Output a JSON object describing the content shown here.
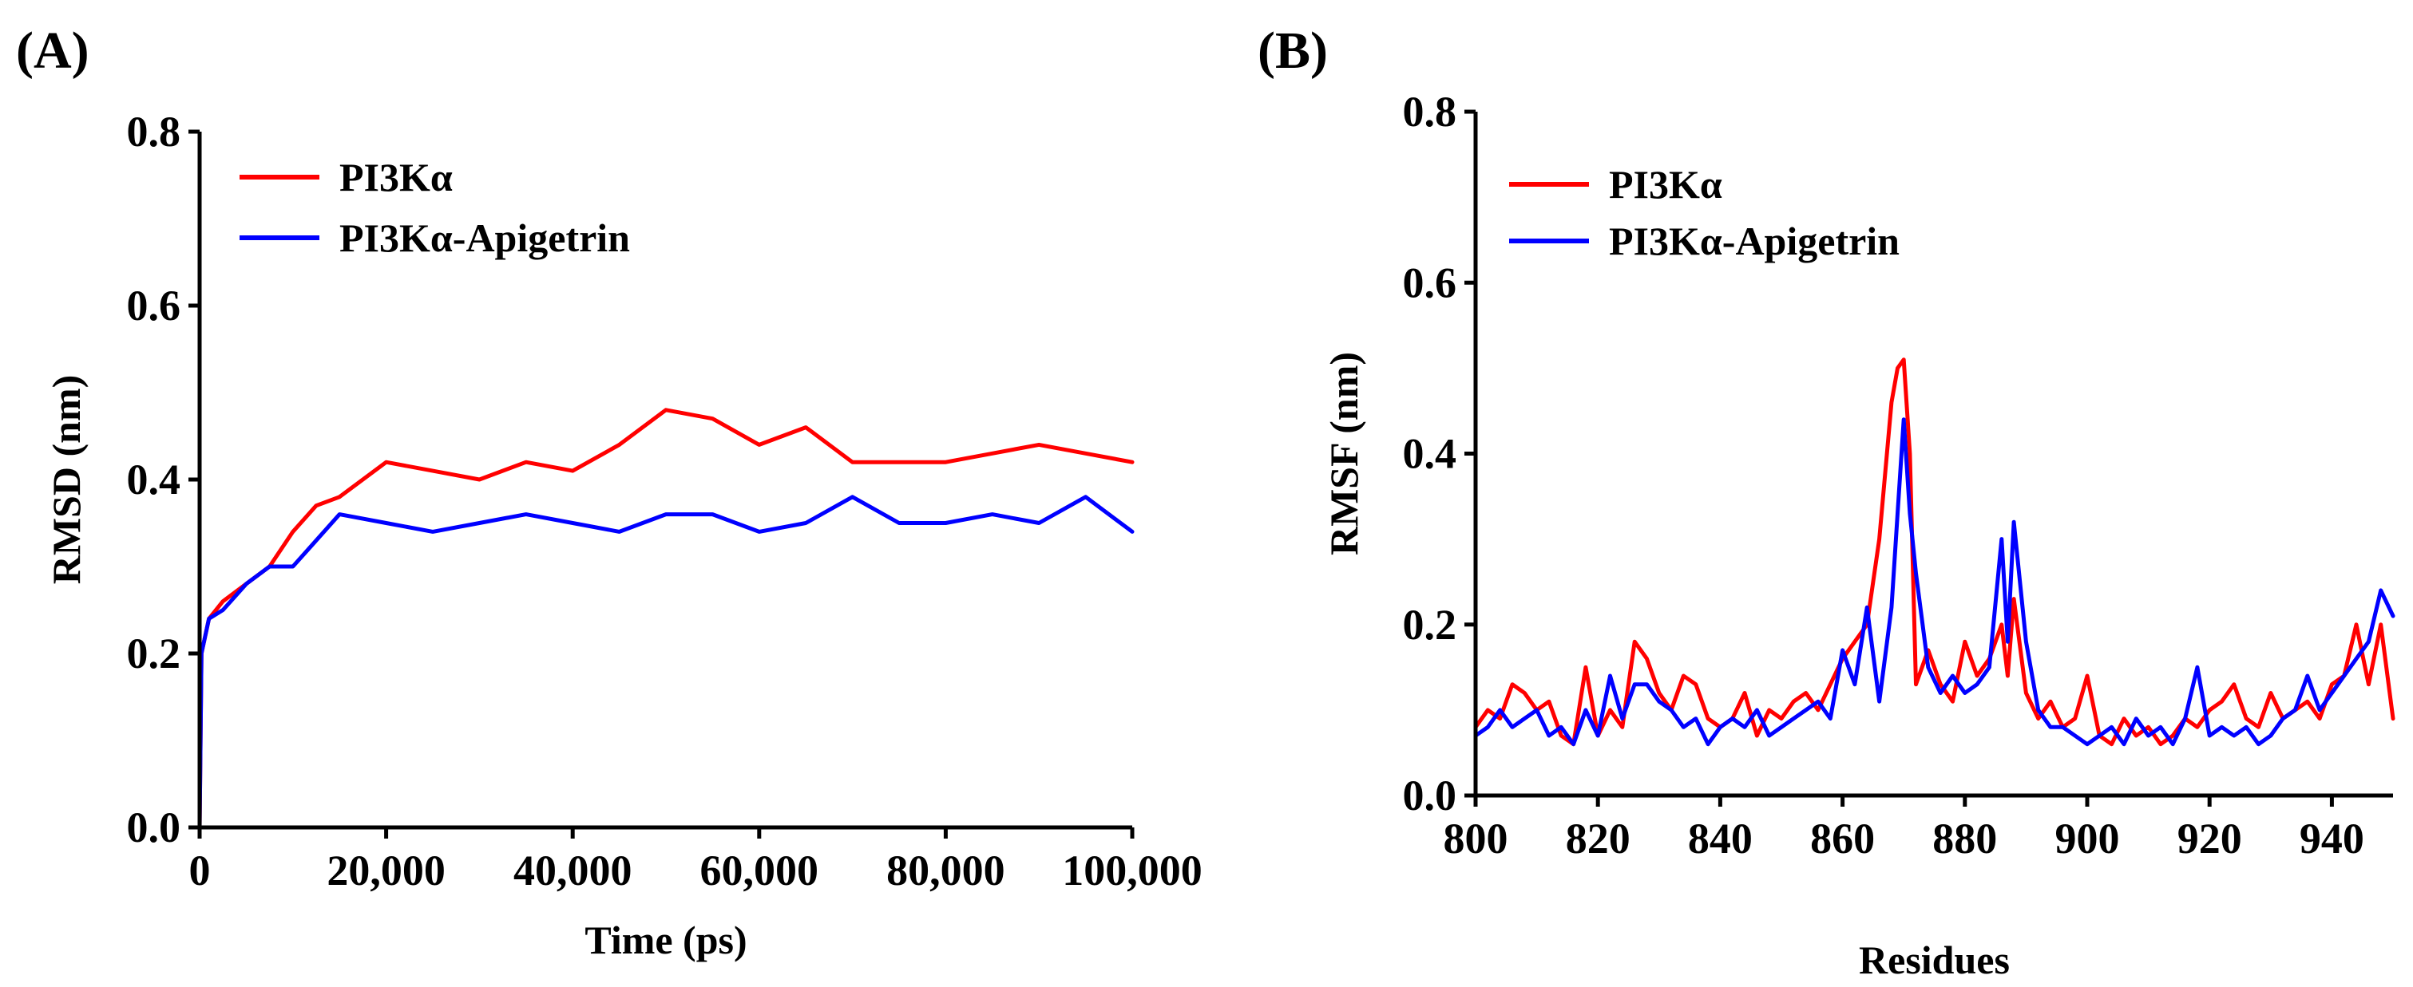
{
  "chart_data": [
    {
      "panel": "(A)",
      "type": "line",
      "title": "",
      "xlabel": "Time (ps)",
      "ylabel": "RMSD (nm)",
      "xlim": [
        0,
        100000
      ],
      "ylim": [
        0.0,
        0.8
      ],
      "x_ticks": [
        0,
        20000,
        40000,
        60000,
        80000,
        100000
      ],
      "x_tick_labels": [
        "0",
        "20,000",
        "40,000",
        "60,000",
        "80,000",
        "100,000"
      ],
      "y_ticks": [
        0.0,
        0.2,
        0.4,
        0.6,
        0.8
      ],
      "y_tick_labels": [
        "0.0",
        "0.2",
        "0.4",
        "0.6",
        "0.8"
      ],
      "grid": false,
      "legend_position": "top-left",
      "series": [
        {
          "name": "PI3Kα",
          "color": "#ff0000",
          "x": [
            0,
            200,
            1000,
            2500,
            5000,
            7500,
            10000,
            12500,
            15000,
            20000,
            25000,
            30000,
            35000,
            40000,
            45000,
            50000,
            55000,
            60000,
            65000,
            70000,
            75000,
            80000,
            85000,
            90000,
            95000,
            100000
          ],
          "values": [
            0.0,
            0.2,
            0.24,
            0.26,
            0.28,
            0.3,
            0.34,
            0.37,
            0.38,
            0.42,
            0.41,
            0.4,
            0.42,
            0.41,
            0.44,
            0.48,
            0.47,
            0.44,
            0.46,
            0.42,
            0.42,
            0.42,
            0.43,
            0.44,
            0.43,
            0.42
          ]
        },
        {
          "name": "PI3Kα-Apigetrin",
          "color": "#0000ff",
          "x": [
            0,
            200,
            1000,
            2500,
            5000,
            7500,
            10000,
            12500,
            15000,
            20000,
            25000,
            30000,
            35000,
            40000,
            45000,
            50000,
            55000,
            60000,
            65000,
            70000,
            75000,
            80000,
            85000,
            90000,
            95000,
            100000
          ],
          "values": [
            0.0,
            0.2,
            0.24,
            0.25,
            0.28,
            0.3,
            0.3,
            0.33,
            0.36,
            0.35,
            0.34,
            0.35,
            0.36,
            0.35,
            0.34,
            0.36,
            0.36,
            0.34,
            0.35,
            0.38,
            0.35,
            0.35,
            0.36,
            0.35,
            0.38,
            0.34
          ]
        }
      ]
    },
    {
      "panel": "(B)",
      "type": "line",
      "title": "",
      "xlabel": "Residues",
      "ylabel": "RMSF (nm)",
      "xlim": [
        800,
        950
      ],
      "ylim": [
        0.0,
        0.8
      ],
      "x_ticks": [
        800,
        820,
        840,
        860,
        880,
        900,
        920,
        940
      ],
      "x_tick_labels": [
        "800",
        "820",
        "840",
        "860",
        "880",
        "900",
        "920",
        "940"
      ],
      "y_ticks": [
        0.0,
        0.2,
        0.4,
        0.6,
        0.8
      ],
      "y_tick_labels": [
        "0.0",
        "0.2",
        "0.4",
        "0.6",
        "0.8"
      ],
      "grid": false,
      "legend_position": "top-left",
      "series": [
        {
          "name": "PI3Kα",
          "color": "#ff0000",
          "x": [
            800,
            802,
            804,
            806,
            808,
            810,
            812,
            814,
            816,
            818,
            820,
            822,
            824,
            826,
            828,
            830,
            832,
            834,
            836,
            838,
            840,
            842,
            844,
            846,
            848,
            850,
            852,
            854,
            856,
            858,
            860,
            862,
            864,
            866,
            868,
            869,
            870,
            871,
            872,
            874,
            876,
            878,
            880,
            882,
            884,
            886,
            887,
            888,
            890,
            892,
            894,
            896,
            898,
            900,
            902,
            904,
            906,
            908,
            910,
            912,
            914,
            916,
            918,
            920,
            922,
            924,
            926,
            928,
            930,
            932,
            934,
            936,
            938,
            940,
            942,
            944,
            946,
            948,
            950
          ],
          "values": [
            0.08,
            0.1,
            0.09,
            0.13,
            0.12,
            0.1,
            0.11,
            0.07,
            0.06,
            0.15,
            0.07,
            0.1,
            0.08,
            0.18,
            0.16,
            0.12,
            0.1,
            0.14,
            0.13,
            0.09,
            0.08,
            0.09,
            0.12,
            0.07,
            0.1,
            0.09,
            0.11,
            0.12,
            0.1,
            0.13,
            0.16,
            0.18,
            0.2,
            0.3,
            0.46,
            0.5,
            0.51,
            0.4,
            0.13,
            0.17,
            0.13,
            0.11,
            0.18,
            0.14,
            0.16,
            0.2,
            0.14,
            0.23,
            0.12,
            0.09,
            0.11,
            0.08,
            0.09,
            0.14,
            0.07,
            0.06,
            0.09,
            0.07,
            0.08,
            0.06,
            0.07,
            0.09,
            0.08,
            0.1,
            0.11,
            0.13,
            0.09,
            0.08,
            0.12,
            0.09,
            0.1,
            0.11,
            0.09,
            0.13,
            0.14,
            0.2,
            0.13,
            0.2,
            0.09
          ]
        },
        {
          "name": "PI3Kα-Apigetrin",
          "color": "#0000ff",
          "x": [
            800,
            802,
            804,
            806,
            808,
            810,
            812,
            814,
            816,
            818,
            820,
            822,
            824,
            826,
            828,
            830,
            832,
            834,
            836,
            838,
            840,
            842,
            844,
            846,
            848,
            850,
            852,
            854,
            856,
            858,
            860,
            862,
            864,
            866,
            868,
            869,
            870,
            871,
            872,
            874,
            876,
            878,
            880,
            882,
            884,
            886,
            887,
            888,
            890,
            892,
            894,
            896,
            898,
            900,
            902,
            904,
            906,
            908,
            910,
            912,
            914,
            916,
            918,
            920,
            922,
            924,
            926,
            928,
            930,
            932,
            934,
            936,
            938,
            940,
            942,
            944,
            946,
            948,
            950
          ],
          "values": [
            0.07,
            0.08,
            0.1,
            0.08,
            0.09,
            0.1,
            0.07,
            0.08,
            0.06,
            0.1,
            0.07,
            0.14,
            0.09,
            0.13,
            0.13,
            0.11,
            0.1,
            0.08,
            0.09,
            0.06,
            0.08,
            0.09,
            0.08,
            0.1,
            0.07,
            0.08,
            0.09,
            0.1,
            0.11,
            0.09,
            0.17,
            0.13,
            0.22,
            0.11,
            0.22,
            0.33,
            0.44,
            0.33,
            0.26,
            0.15,
            0.12,
            0.14,
            0.12,
            0.13,
            0.15,
            0.3,
            0.18,
            0.32,
            0.18,
            0.1,
            0.08,
            0.08,
            0.07,
            0.06,
            0.07,
            0.08,
            0.06,
            0.09,
            0.07,
            0.08,
            0.06,
            0.09,
            0.15,
            0.07,
            0.08,
            0.07,
            0.08,
            0.06,
            0.07,
            0.09,
            0.1,
            0.14,
            0.1,
            0.12,
            0.14,
            0.16,
            0.18,
            0.24,
            0.21
          ]
        }
      ]
    }
  ]
}
